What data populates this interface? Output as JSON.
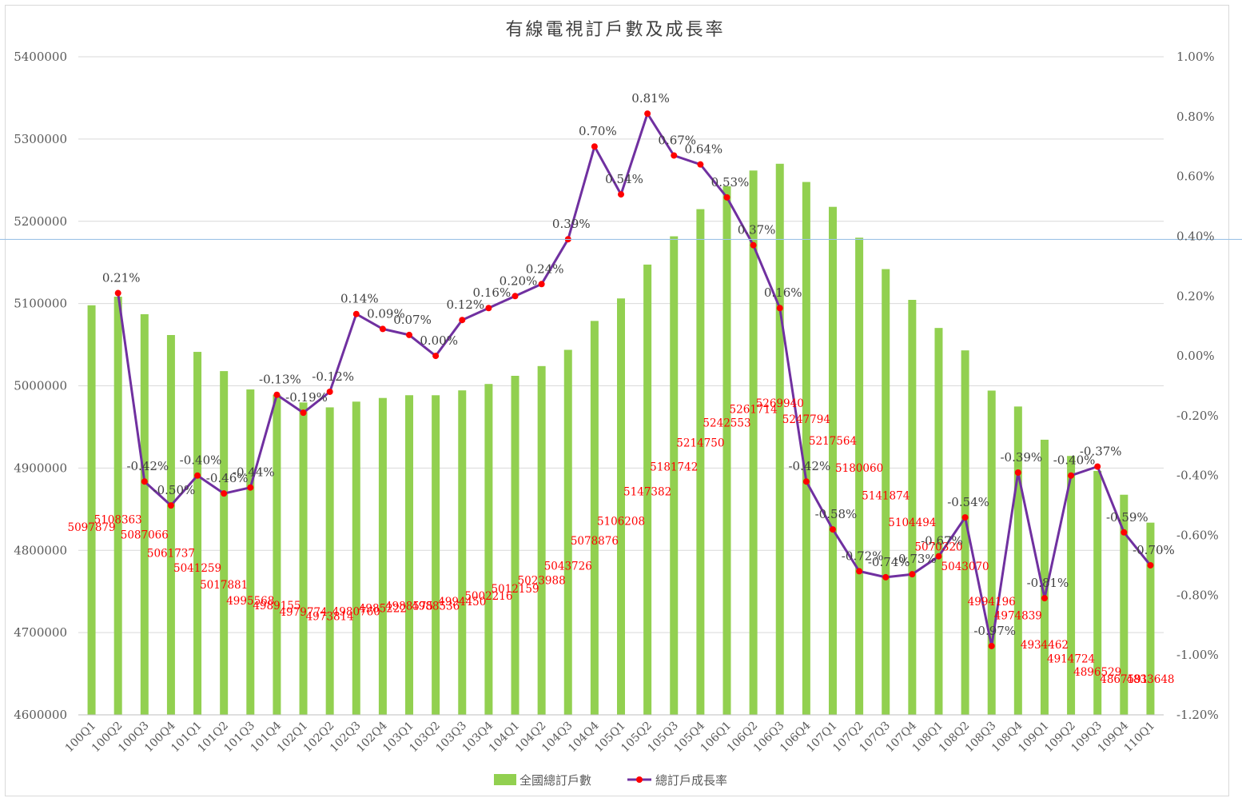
{
  "chart_data": {
    "type": "bar+line",
    "title": "有線電視訂戶數及成長率",
    "categories": [
      "100Q1",
      "100Q2",
      "100Q3",
      "100Q4",
      "101Q1",
      "101Q2",
      "101Q3",
      "101Q4",
      "102Q1",
      "102Q2",
      "102Q3",
      "102Q4",
      "103Q1",
      "103Q2",
      "103Q3",
      "103Q4",
      "104Q1",
      "104Q2",
      "104Q3",
      "104Q4",
      "105Q1",
      "105Q2",
      "105Q3",
      "105Q4",
      "106Q1",
      "106Q2",
      "106Q3",
      "106Q4",
      "107Q1",
      "107Q2",
      "107Q3",
      "107Q4",
      "108Q1",
      "108Q2",
      "108Q3",
      "108Q4",
      "109Q1",
      "109Q2",
      "109Q3",
      "109Q4",
      "110Q1"
    ],
    "series": [
      {
        "name": "全國總訂戶數",
        "type": "bar",
        "axis": "left",
        "color": "#92d050",
        "values": [
          5097879,
          5108363,
          5087066,
          5061737,
          5041259,
          5017881,
          4995568,
          4989155,
          4979774,
          4973814,
          4980760,
          4985222,
          4988575,
          4988536,
          4994450,
          5002216,
          5012159,
          5023988,
          5043726,
          5078876,
          5106208,
          5147382,
          5181742,
          5214750,
          5242553,
          5261714,
          5269940,
          5247794,
          5217564,
          5180060,
          5141874,
          5104494,
          5070320,
          5043070,
          4994196,
          4974839,
          4934462,
          4914724,
          4896529,
          4867591,
          4833648
        ],
        "labels": [
          "5097879",
          "5108363",
          "5087066",
          "5061737",
          "5041259",
          "5017881",
          "4995568",
          "4989155",
          "4979774",
          "4973814",
          "4980760",
          "4985222",
          "4988575",
          "4988536",
          "4994450",
          "5002216",
          "5012159",
          "5023988",
          "5043726",
          "5078876",
          "5106208",
          "5147382",
          "5181742",
          "5214750",
          "5242553",
          "5261714",
          "5269940",
          "5247794",
          "5217564",
          "5180060",
          "5141874",
          "5104494",
          "5070320",
          "5043070",
          "4994196",
          "4974839",
          "4934462",
          "4914724",
          "4896529",
          "4867591",
          "4833648"
        ]
      },
      {
        "name": "總訂戶成長率",
        "type": "line",
        "axis": "right",
        "color": "#7030a0",
        "marker_color": "#ff0000",
        "values": [
          null,
          0.21,
          -0.42,
          -0.5,
          -0.4,
          -0.46,
          -0.44,
          -0.13,
          -0.19,
          -0.12,
          0.14,
          0.09,
          0.07,
          0.0,
          0.12,
          0.16,
          0.2,
          0.24,
          0.39,
          0.7,
          0.54,
          0.81,
          0.67,
          0.64,
          0.53,
          0.37,
          0.16,
          -0.42,
          -0.58,
          -0.72,
          -0.74,
          -0.73,
          -0.67,
          -0.54,
          -0.97,
          -0.39,
          -0.81,
          -0.4,
          -0.37,
          -0.59,
          -0.7
        ],
        "labels": [
          "",
          "0.21%",
          "-0.42%",
          "-0.50%",
          "-0.40%",
          "-0.46%",
          "-0.44%",
          "-0.13%",
          "-0.19%",
          "-0.12%",
          "0.14%",
          "0.09%",
          "0.07%",
          "0.00%",
          "0.12%",
          "0.16%",
          "0.20%",
          "0.24%",
          "0.39%",
          "0.70%",
          "0.54%",
          "0.81%",
          "0.67%",
          "0.64%",
          "0.53%",
          "0.37%",
          "0.16%",
          "-0.42%",
          "-0.58%",
          "-0.72%",
          "-0.74%",
          "-0.73%",
          "-0.67%",
          "-0.54%",
          "-0.97%",
          "-0.39%",
          "-0.81%",
          "-0.40%",
          "-0.37%",
          "-0.59%",
          "-0.70%"
        ]
      }
    ],
    "y_left": {
      "ylim": [
        4600000,
        5400000
      ],
      "ticks": [
        "4600000",
        "4700000",
        "4800000",
        "4900000",
        "5000000",
        "5100000",
        "5200000",
        "5300000",
        "5400000"
      ]
    },
    "y_right": {
      "ylim": [
        -1.2,
        1.0
      ],
      "ticks": [
        "-1.20%",
        "-1.00%",
        "-0.80%",
        "-0.60%",
        "-0.40%",
        "-0.20%",
        "0.00%",
        "0.20%",
        "0.40%",
        "0.60%",
        "0.80%",
        "1.00%"
      ]
    },
    "grid": true,
    "legend_position": "bottom"
  }
}
